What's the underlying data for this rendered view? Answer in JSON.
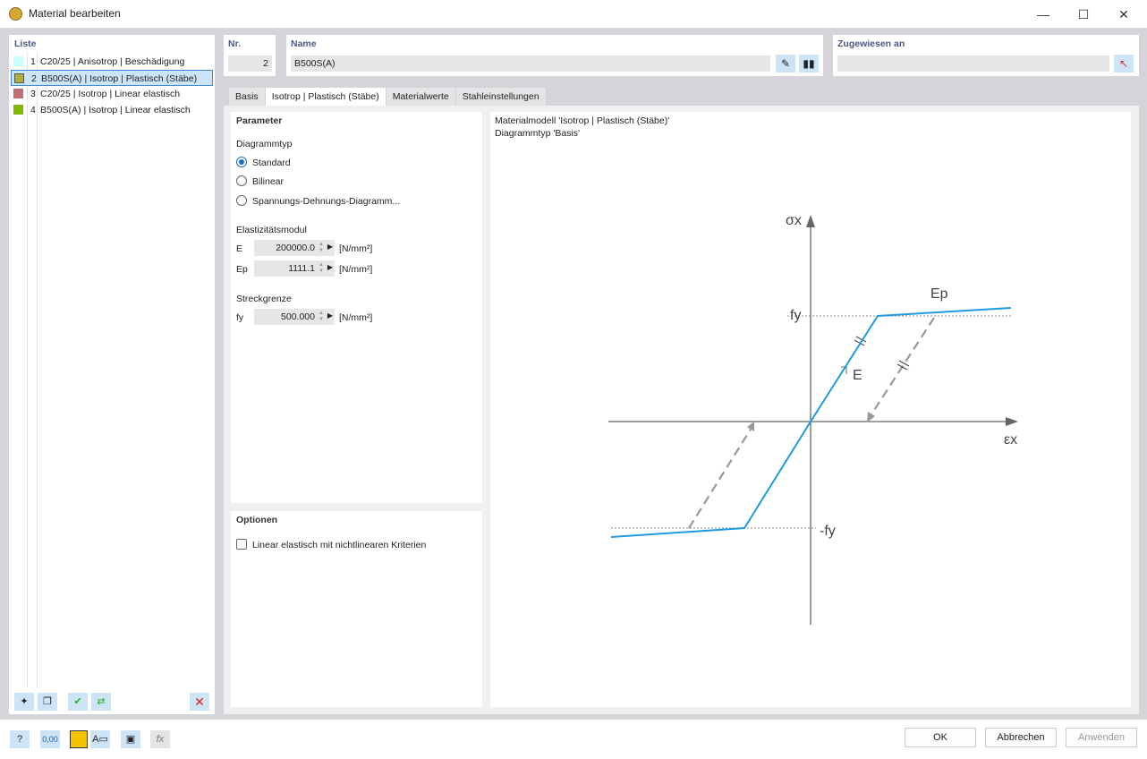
{
  "window": {
    "title": "Material bearbeiten",
    "minimize": "—",
    "maximize": "☐",
    "close": "✕"
  },
  "list": {
    "header": "Liste",
    "items": [
      {
        "num": "1",
        "label": "C20/25 | Anisotrop | Beschädigung",
        "color": "#c8ffff"
      },
      {
        "num": "2",
        "label": "B500S(A) | Isotrop | Plastisch (Stäbe)",
        "color": "#b0b040",
        "selected": true
      },
      {
        "num": "3",
        "label": "C20/25 | Isotrop | Linear elastisch",
        "color": "#c07070"
      },
      {
        "num": "4",
        "label": "B500S(A) | Isotrop | Linear elastisch",
        "color": "#80b800"
      }
    ]
  },
  "nr": {
    "label": "Nr.",
    "value": "2"
  },
  "name": {
    "label": "Name",
    "value": "B500S(A)"
  },
  "assigned": {
    "label": "Zugewiesen an",
    "value": ""
  },
  "tabs": [
    {
      "label": "Basis"
    },
    {
      "label": "Isotrop | Plastisch (Stäbe)",
      "active": true
    },
    {
      "label": "Materialwerte"
    },
    {
      "label": "Stahleinstellungen"
    }
  ],
  "parameter": {
    "header": "Parameter",
    "diagram_type_label": "Diagrammtyp",
    "diagram_types": [
      {
        "label": "Standard",
        "checked": true
      },
      {
        "label": "Bilinear",
        "checked": false
      },
      {
        "label": "Spannungs-Dehnungs-Diagramm...",
        "checked": false
      }
    ],
    "elasticity_label": "Elastizitätsmodul",
    "E": {
      "label": "E",
      "value": "200000.0",
      "unit": "[N/mm²]"
    },
    "Ep": {
      "label": "Ep",
      "value": "1111.1",
      "unit": "[N/mm²]"
    },
    "yield_label": "Streckgrenze",
    "fy": {
      "label": "fy",
      "value": "500.000",
      "unit": "[N/mm²]"
    }
  },
  "options": {
    "header": "Optionen",
    "linear_elastic": {
      "label": "Linear elastisch mit nichtlinearen Kriterien",
      "checked": false
    }
  },
  "diagram": {
    "line1": "Materialmodell 'Isotrop | Plastisch (Stäbe)'",
    "line2": "Diagrammtyp 'Basis'",
    "labels": {
      "sigma": "σx",
      "eps": "εx",
      "fy": "fy",
      "neg_fy": "-fy",
      "E": "E",
      "Ep": "Ep"
    },
    "line_color": "#1e9be0"
  },
  "buttons": {
    "ok": "OK",
    "cancel": "Abbrechen",
    "apply": "Anwenden"
  },
  "footer_value_icon": "0,00"
}
